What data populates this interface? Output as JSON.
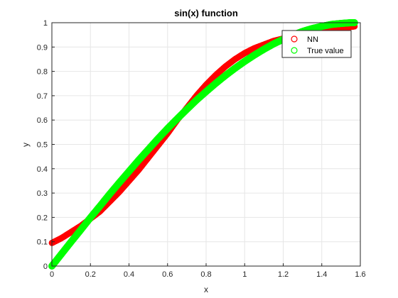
{
  "chart_data": {
    "type": "scatter",
    "title": "sin(x) function",
    "xlabel": "x",
    "ylabel": "y",
    "xlim": [
      0,
      1.6
    ],
    "ylim": [
      0,
      1
    ],
    "xticks": [
      "0",
      "0.2",
      "0.4",
      "0.6",
      "0.8",
      "1",
      "1.2",
      "1.4",
      "1.6"
    ],
    "yticks": [
      "0",
      "0.1",
      "0.2",
      "0.3",
      "0.4",
      "0.5",
      "0.6",
      "0.7",
      "0.8",
      "0.9",
      "1"
    ],
    "grid": true,
    "legend_position": "top-right",
    "series": [
      {
        "name": "NN",
        "color": "#ff0000",
        "marker": "circle-open",
        "x": [
          0.0,
          0.05,
          0.1,
          0.15,
          0.2,
          0.25,
          0.3,
          0.35,
          0.4,
          0.45,
          0.5,
          0.55,
          0.6,
          0.65,
          0.7,
          0.75,
          0.8,
          0.85,
          0.9,
          0.95,
          1.0,
          1.05,
          1.1,
          1.15,
          1.2,
          1.25,
          1.3,
          1.35,
          1.4,
          1.45,
          1.5,
          1.55,
          1.57
        ],
        "y": [
          0.095,
          0.115,
          0.14,
          0.165,
          0.195,
          0.225,
          0.265,
          0.305,
          0.35,
          0.395,
          0.445,
          0.495,
          0.545,
          0.6,
          0.65,
          0.7,
          0.745,
          0.785,
          0.82,
          0.85,
          0.875,
          0.895,
          0.91,
          0.925,
          0.935,
          0.945,
          0.955,
          0.963,
          0.97,
          0.975,
          0.98,
          0.983,
          0.985
        ]
      },
      {
        "name": "True value",
        "color": "#00ff00",
        "marker": "circle-open",
        "x": [
          0.0,
          0.05,
          0.1,
          0.15,
          0.2,
          0.25,
          0.3,
          0.35,
          0.4,
          0.45,
          0.5,
          0.55,
          0.6,
          0.65,
          0.7,
          0.75,
          0.8,
          0.85,
          0.9,
          0.95,
          1.0,
          1.05,
          1.1,
          1.15,
          1.2,
          1.25,
          1.3,
          1.35,
          1.4,
          1.45,
          1.5,
          1.55,
          1.57
        ],
        "y": [
          0.0,
          0.05,
          0.1,
          0.149,
          0.199,
          0.247,
          0.296,
          0.343,
          0.389,
          0.435,
          0.479,
          0.523,
          0.565,
          0.605,
          0.644,
          0.682,
          0.717,
          0.751,
          0.783,
          0.813,
          0.841,
          0.867,
          0.891,
          0.913,
          0.932,
          0.949,
          0.964,
          0.976,
          0.985,
          0.993,
          0.997,
          1.0,
          1.0
        ]
      }
    ]
  }
}
